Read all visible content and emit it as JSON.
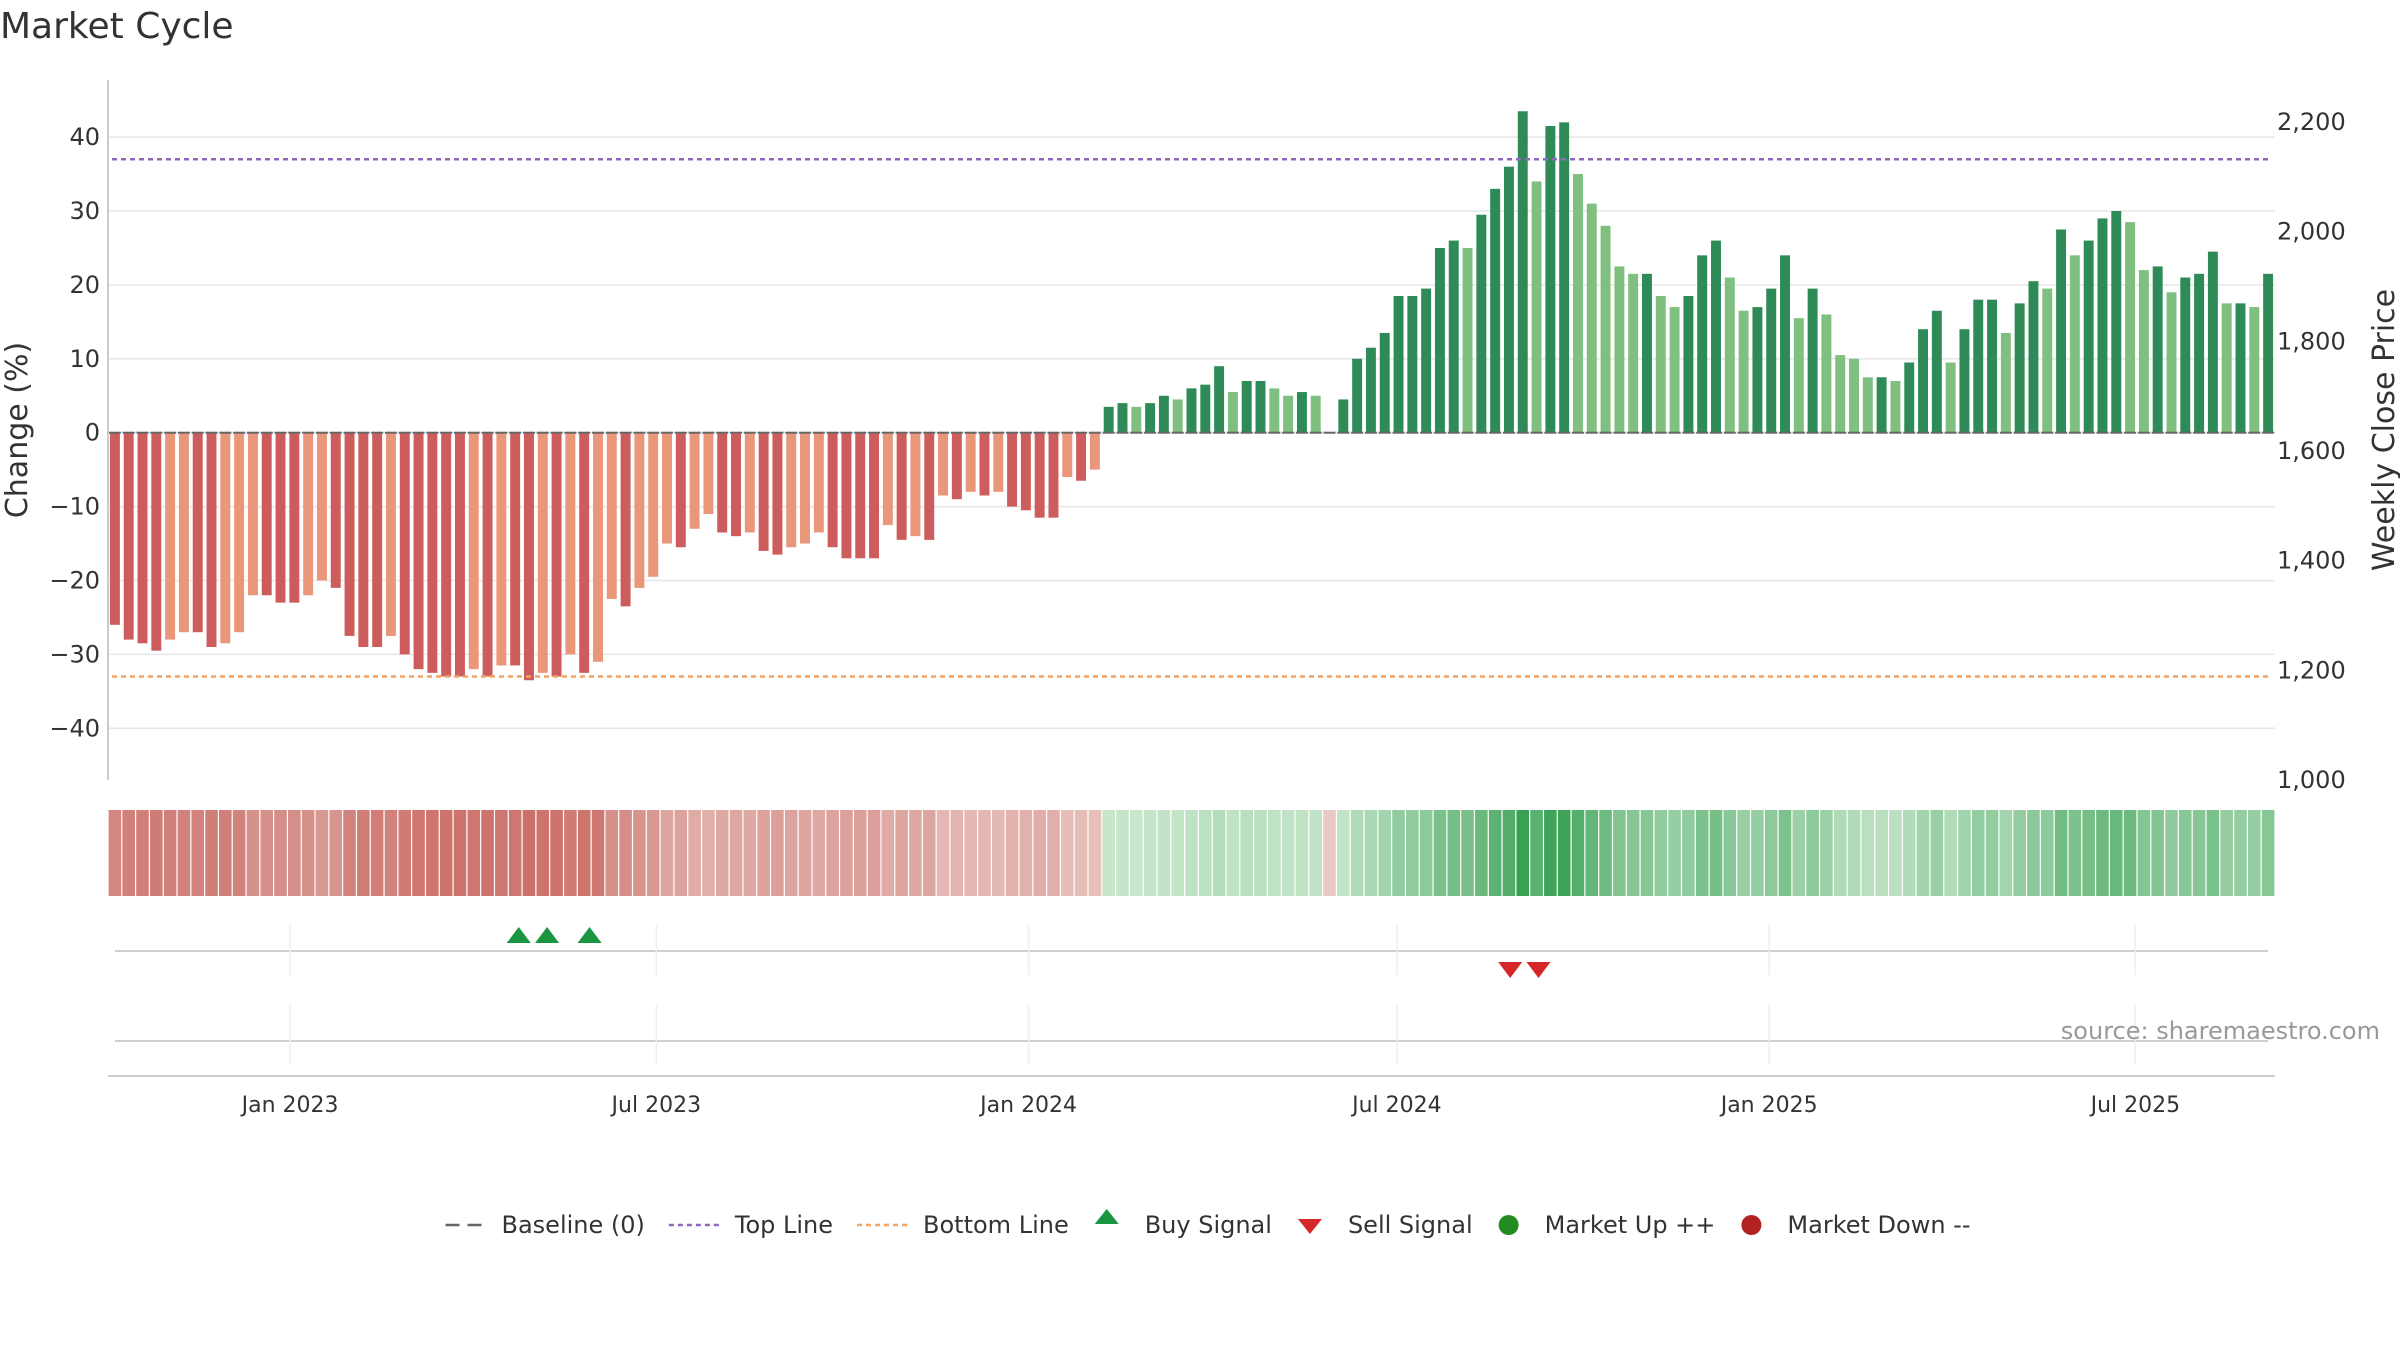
{
  "chart_data": {
    "type": "bar",
    "title": "Market Cycle",
    "ylabel_left": "Change (%)",
    "ylabel_right": "Weekly Close Price",
    "ylim_left": [
      -47,
      48
    ],
    "ylim_right": [
      1000,
      2280
    ],
    "yticks_left": [
      40,
      30,
      20,
      10,
      0,
      -10,
      -20,
      -30,
      -40
    ],
    "yticks_left_labels": [
      "40",
      "30",
      "20",
      "10",
      "0",
      "−10",
      "−20",
      "−30",
      "−40"
    ],
    "yticks_right": [
      2200,
      2000,
      1800,
      1600,
      1400,
      1200,
      1000
    ],
    "yticks_right_labels": [
      "2,200",
      "2,000",
      "1,800",
      "1,600",
      "1,400",
      "1,200",
      "1,000"
    ],
    "x_start": "2022-10-03",
    "x_end": "2025-09-08",
    "x_ticks": [
      {
        "date": "2023-01-01",
        "label": "Jan 2023"
      },
      {
        "date": "2023-07-01",
        "label": "Jul 2023"
      },
      {
        "date": "2024-01-01",
        "label": "Jan 2024"
      },
      {
        "date": "2024-07-01",
        "label": "Jul 2024"
      },
      {
        "date": "2025-01-01",
        "label": "Jan 2025"
      },
      {
        "date": "2025-07-01",
        "label": "Jul 2025"
      }
    ],
    "top_line": 37,
    "bottom_line": -33,
    "baseline": 0,
    "values": [
      -26,
      -28,
      -28.5,
      -29.5,
      -28,
      -27,
      -27,
      -29,
      -28.5,
      -27,
      -22,
      -22,
      -23,
      -23,
      -22,
      -20,
      -21,
      -27.5,
      -29,
      -29,
      -27.5,
      -30,
      -32,
      -32.5,
      -33,
      -33,
      -32,
      -33,
      -31.5,
      -31.5,
      -33.5,
      -32.5,
      -33,
      -30,
      -32.5,
      -31,
      -22.5,
      -23.5,
      -21,
      -19.5,
      -15,
      -15.5,
      -13,
      -11,
      -13.5,
      -14,
      -13.5,
      -16,
      -16.5,
      -15.5,
      -15,
      -13.5,
      -15.5,
      -17,
      -17,
      -17,
      -12.5,
      -14.5,
      -14,
      -14.5,
      -8.5,
      -9,
      -8,
      -8.5,
      -8,
      -10,
      -10.5,
      -11.5,
      -11.5,
      -6,
      -6.5,
      -5,
      3.5,
      4,
      3.5,
      4,
      5,
      4.5,
      6,
      6.5,
      9,
      5.5,
      7,
      7,
      6,
      5,
      5.5,
      5,
      0,
      4.5,
      10,
      11.5,
      13.5,
      18.5,
      18.5,
      19.5,
      25,
      26,
      25,
      29.5,
      33,
      36,
      43.5,
      34,
      41.5,
      42,
      35,
      31,
      28,
      22.5,
      21.5,
      21.5,
      18.5,
      17,
      18.5,
      24,
      26,
      21,
      16.5,
      17,
      19.5,
      24,
      15.5,
      19.5,
      16,
      10.5,
      10,
      7.5,
      7.5,
      7,
      9.5,
      14,
      16.5,
      9.5,
      14,
      18,
      18,
      13.5,
      17.5,
      20.5,
      19.5,
      27.5,
      24,
      26,
      29,
      30,
      28.5,
      22,
      22.5,
      19,
      21,
      21.5,
      24.5,
      17.5,
      17.5,
      17,
      21.5
    ],
    "band_values": [
      -26,
      -28,
      -28.5,
      -29.5,
      -28,
      -27,
      -27,
      -29,
      -28.5,
      -27,
      -22,
      -22,
      -23,
      -23,
      -22,
      -20,
      -21,
      -27.5,
      -29,
      -29,
      -27.5,
      -30,
      -32,
      -32.5,
      -33,
      -33,
      -32,
      -33,
      -31.5,
      -31.5,
      -33.5,
      -32.5,
      -33,
      -30,
      -32.5,
      -31,
      -22.5,
      -23.5,
      -21,
      -19.5,
      -15,
      -15.5,
      -13,
      -11,
      -13.5,
      -14,
      -13.5,
      -16,
      -16.5,
      -15.5,
      -15,
      -13.5,
      -15.5,
      -17,
      -17,
      -17,
      -12.5,
      -14.5,
      -14,
      -14.5,
      -8.5,
      -9,
      -8,
      -8.5,
      -8,
      -10,
      -10.5,
      -11.5,
      -11.5,
      -6,
      -6.5,
      -5,
      3.5,
      4,
      3.5,
      4,
      5,
      4.5,
      6,
      6.5,
      9,
      5.5,
      7,
      7,
      6,
      5,
      5.5,
      5,
      -2,
      4.5,
      10,
      11.5,
      13.5,
      18.5,
      18.5,
      19.5,
      25,
      26,
      25,
      29.5,
      33,
      36,
      43.5,
      34,
      41.5,
      42,
      35,
      31,
      28,
      22.5,
      21.5,
      21.5,
      18.5,
      17,
      18.5,
      24,
      26,
      21,
      16.5,
      17,
      19.5,
      24,
      15.5,
      19.5,
      16,
      10.5,
      10,
      7.5,
      7.5,
      7,
      9.5,
      14,
      16.5,
      9.5,
      14,
      18,
      18,
      13.5,
      17.5,
      20.5,
      19.5,
      27.5,
      24,
      26,
      29,
      30,
      28.5,
      22,
      22.5,
      19,
      21,
      21.5,
      24.5,
      17.5,
      17.5,
      17,
      21.5
    ],
    "buy_signals": [
      "2023-04-24",
      "2023-05-08",
      "2023-05-29"
    ],
    "sell_signals": [
      "2024-08-26",
      "2024-09-09"
    ],
    "legend": [
      {
        "key": "baseline",
        "label": "Baseline (0)"
      },
      {
        "key": "top",
        "label": "Top Line"
      },
      {
        "key": "bottom",
        "label": "Bottom Line"
      },
      {
        "key": "buy",
        "label": "Buy Signal"
      },
      {
        "key": "sell",
        "label": "Sell Signal"
      },
      {
        "key": "up",
        "label": "Market Up ++"
      },
      {
        "key": "down",
        "label": "Market Down --"
      }
    ],
    "legend_position": "bottom-center",
    "grid": true,
    "source": "source: sharemaestro.com"
  },
  "colors": {
    "up_dark": "#2e8b57",
    "up_light": "#7fbf7f",
    "down_dark": "#cd5c5c",
    "down_light": "#e9967a",
    "top_line": "#9467bd",
    "bottom_line": "#f4a460",
    "buy": "#1a9641",
    "sell": "#d62728",
    "market_up": "#228b22",
    "market_down": "#b22222",
    "baseline": "#666666",
    "grid": "#e6e6e6"
  }
}
